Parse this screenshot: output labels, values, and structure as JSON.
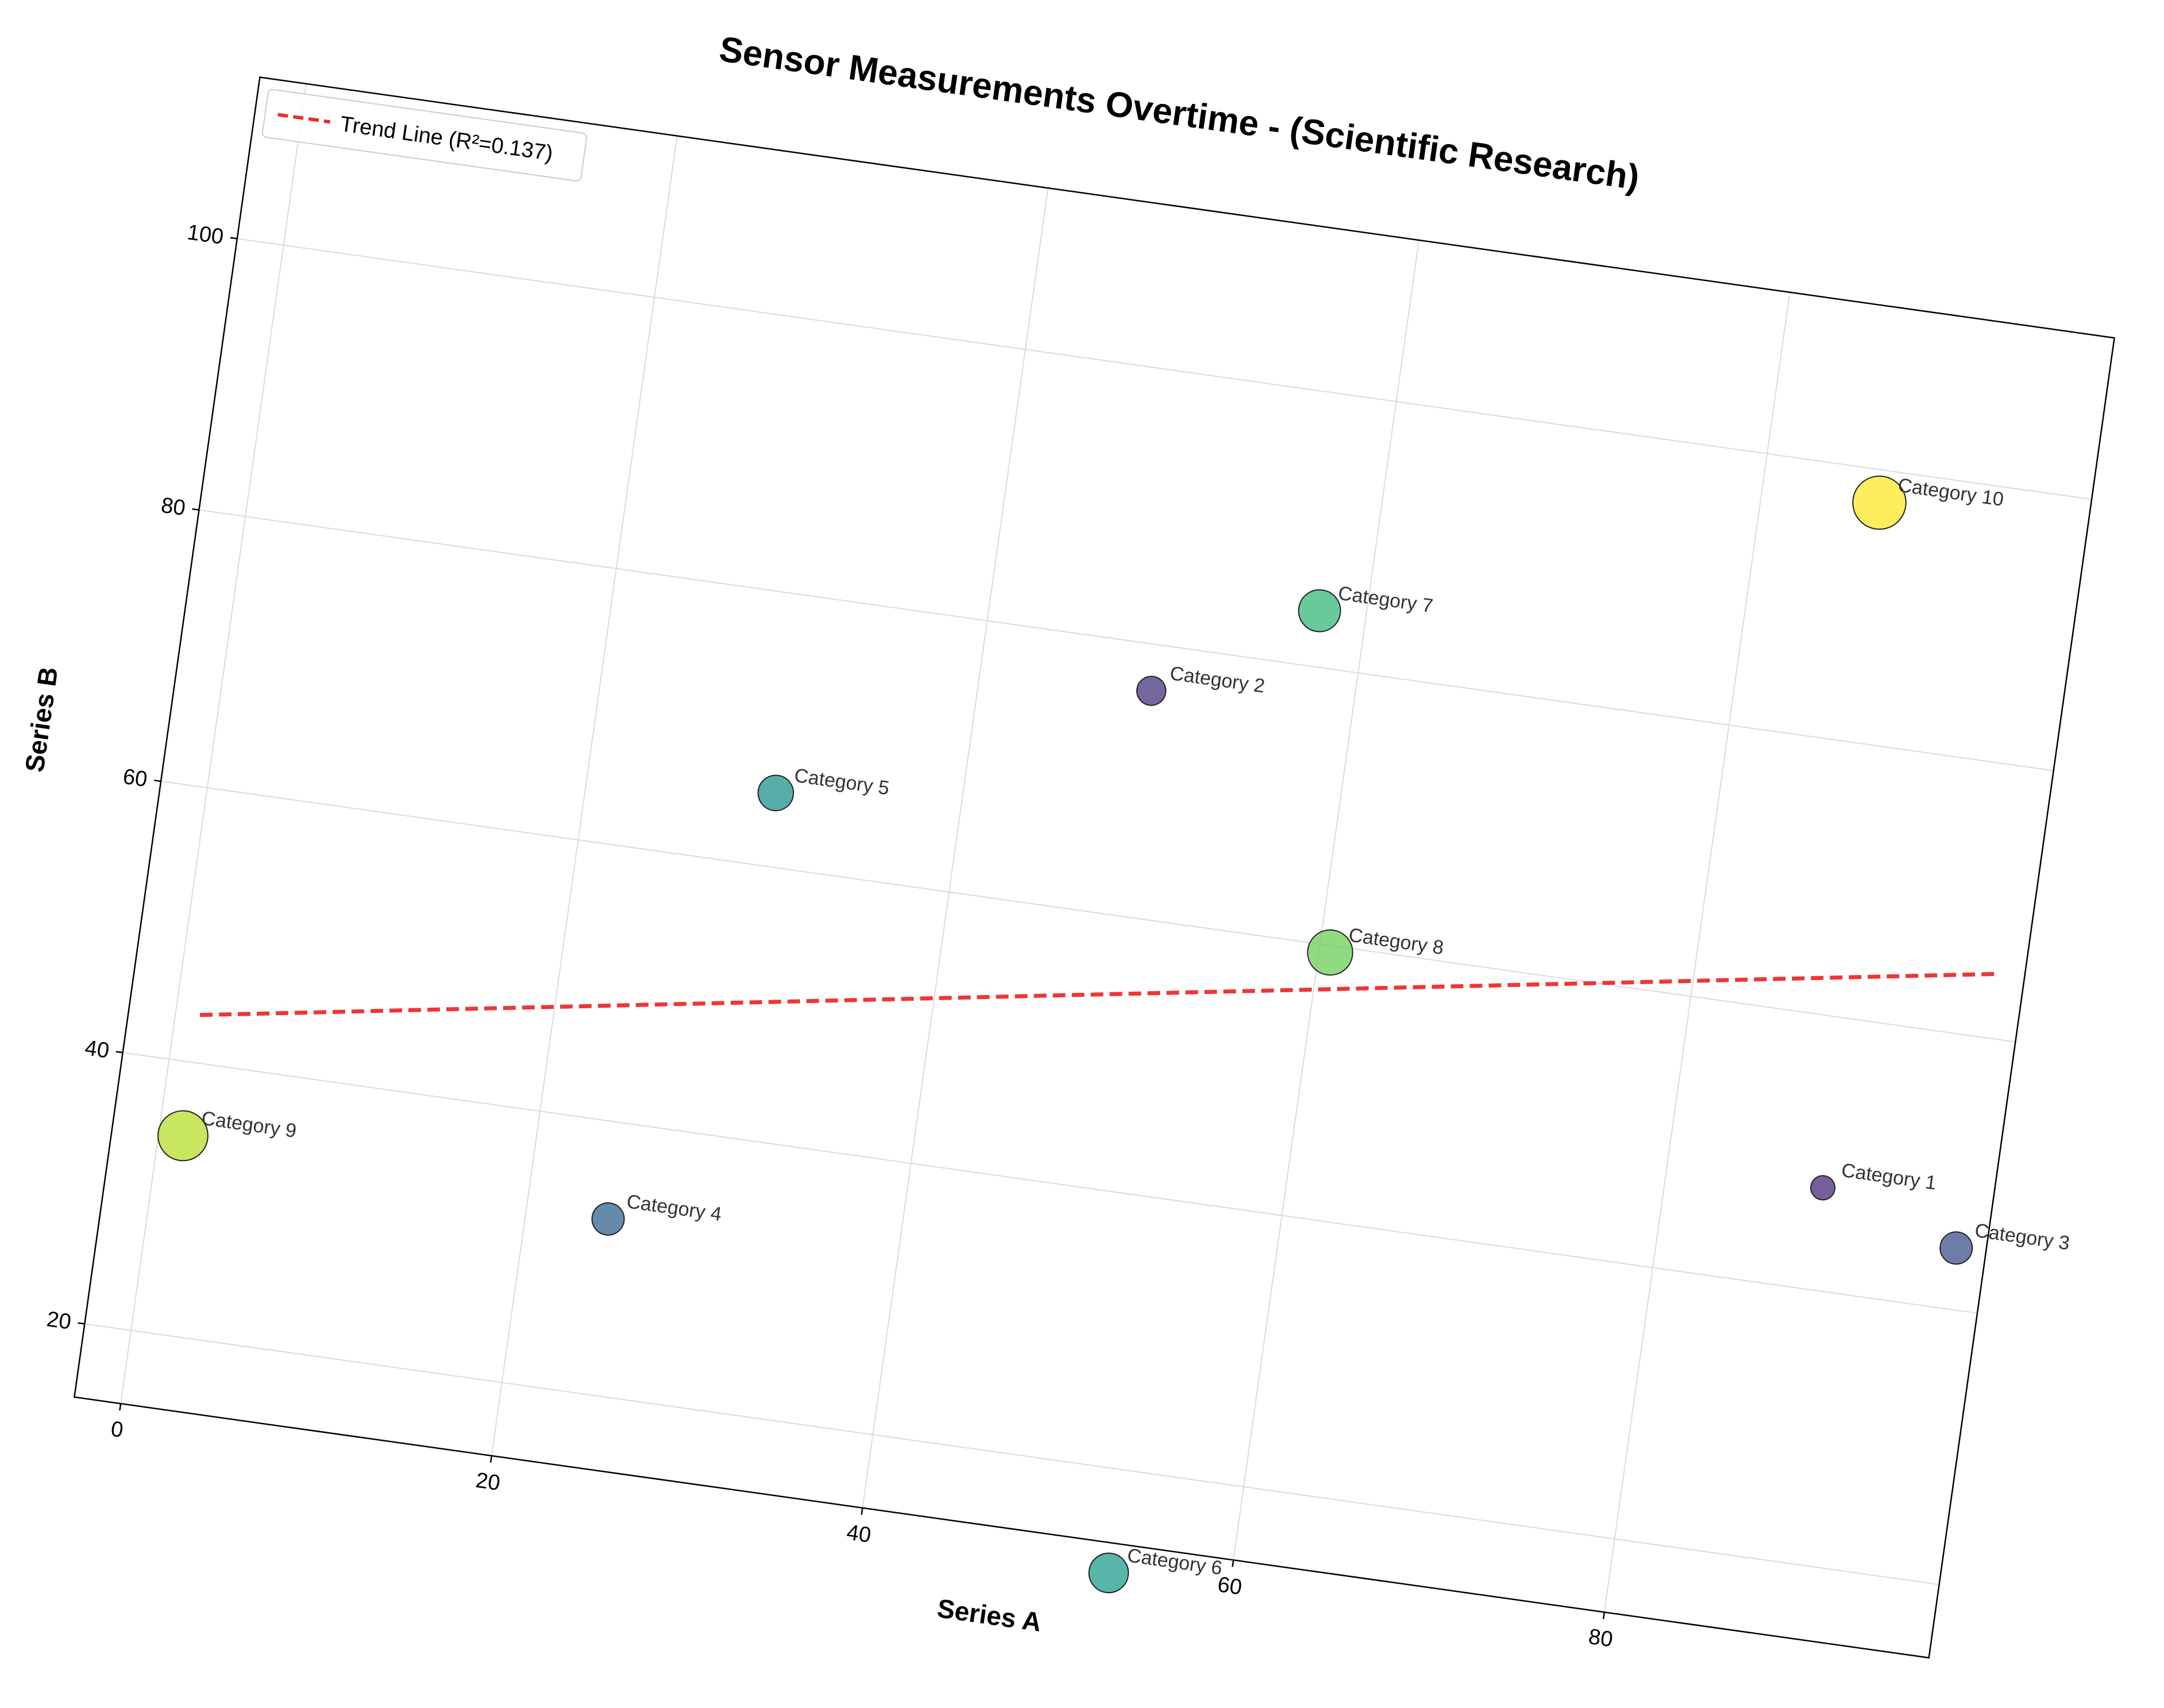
{
  "chart_data": {
    "type": "scatter",
    "title": "Sensor Measurements Overtime - (Scientific Research)",
    "xlabel": "Series A",
    "ylabel": "Series B",
    "xlim": [
      -2.5,
      97.5
    ],
    "ylim": [
      14.6,
      111.9
    ],
    "xticks": [
      0,
      20,
      40,
      60,
      80
    ],
    "yticks": [
      20,
      40,
      60,
      80,
      100
    ],
    "grid": true,
    "legend_position": "upper-left",
    "rotation_degrees": 8,
    "points": [
      {
        "label": "Category 1",
        "x": 88.4,
        "y": 47.5,
        "size": 1.0,
        "color": "#482878"
      },
      {
        "label": "Category 2",
        "x": 49.2,
        "y": 76.6,
        "size": 1.6,
        "color": "#46337e"
      },
      {
        "label": "Category 3",
        "x": 95.9,
        "y": 44.5,
        "size": 2.0,
        "color": "#3b528b"
      },
      {
        "label": "Category 4",
        "x": 24.4,
        "y": 32.9,
        "size": 2.0,
        "color": "#33638d"
      },
      {
        "label": "Category 5",
        "x": 30.1,
        "y": 65.4,
        "size": 2.4,
        "color": "#21918c"
      },
      {
        "label": "Category 6",
        "x": 53.5,
        "y": 12.4,
        "size": 2.9,
        "color": "#1f9e89"
      },
      {
        "label": "Category 7",
        "x": 57.5,
        "y": 84.1,
        "size": 3.2,
        "color": "#35b779"
      },
      {
        "label": "Category 8",
        "x": 60.6,
        "y": 59.5,
        "size": 3.6,
        "color": "#6ece58"
      },
      {
        "label": "Category 9",
        "x": 1.3,
        "y": 34.6,
        "size": 4.2,
        "color": "#b5de2b"
      },
      {
        "label": "Category 10",
        "x": 86.3,
        "y": 97.6,
        "size": 4.6,
        "color": "#fde725"
      }
    ],
    "trend_line": {
      "label": "Trend Line (R²=0.137)",
      "x": [
        1.3,
        95.9
      ],
      "y": [
        43.5,
        64.7
      ],
      "color": "#ee2b2b"
    }
  }
}
